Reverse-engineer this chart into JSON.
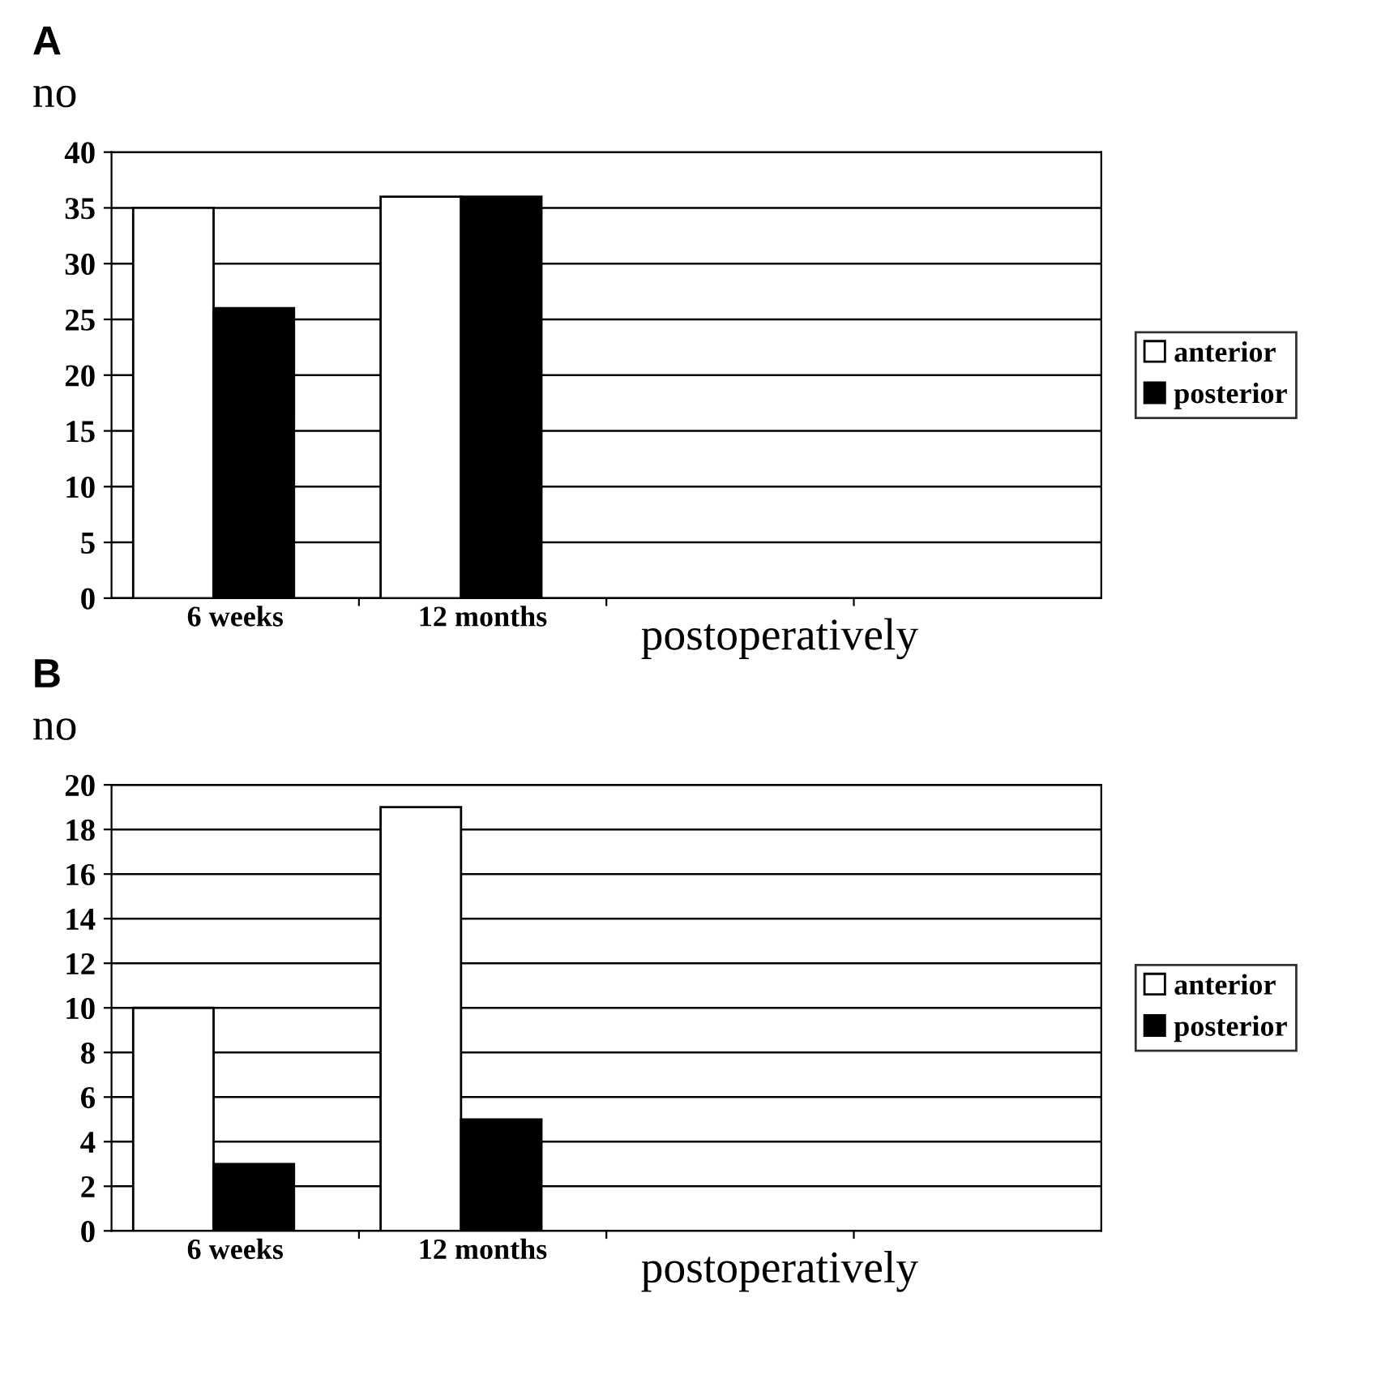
{
  "chart_data": [
    {
      "type": "bar",
      "title": "A",
      "ylabel": "no",
      "xlabel": "postoperatively",
      "categories": [
        "6 weeks",
        "12 months",
        null,
        null
      ],
      "series": [
        {
          "name": "anterior",
          "color": "#ffffff",
          "values": [
            35,
            36,
            null,
            null
          ]
        },
        {
          "name": "posterior",
          "color": "#000000",
          "values": [
            26,
            36,
            null,
            null
          ]
        }
      ],
      "ylim": [
        0,
        40
      ],
      "yticks": [
        0,
        5,
        10,
        15,
        20,
        25,
        30,
        35,
        40
      ],
      "grid": "y",
      "legend": "right"
    },
    {
      "type": "bar",
      "title": "B",
      "ylabel": "no",
      "xlabel": "postoperatively",
      "categories": [
        "6 weeks",
        "12 months",
        null,
        null
      ],
      "series": [
        {
          "name": "anterior",
          "color": "#ffffff",
          "values": [
            10,
            19,
            null,
            null
          ]
        },
        {
          "name": "posterior",
          "color": "#000000",
          "values": [
            3,
            5,
            null,
            null
          ]
        }
      ],
      "ylim": [
        0,
        20
      ],
      "yticks": [
        0,
        2,
        4,
        6,
        8,
        10,
        12,
        14,
        16,
        18,
        20
      ],
      "grid": "y",
      "legend": "right"
    }
  ]
}
